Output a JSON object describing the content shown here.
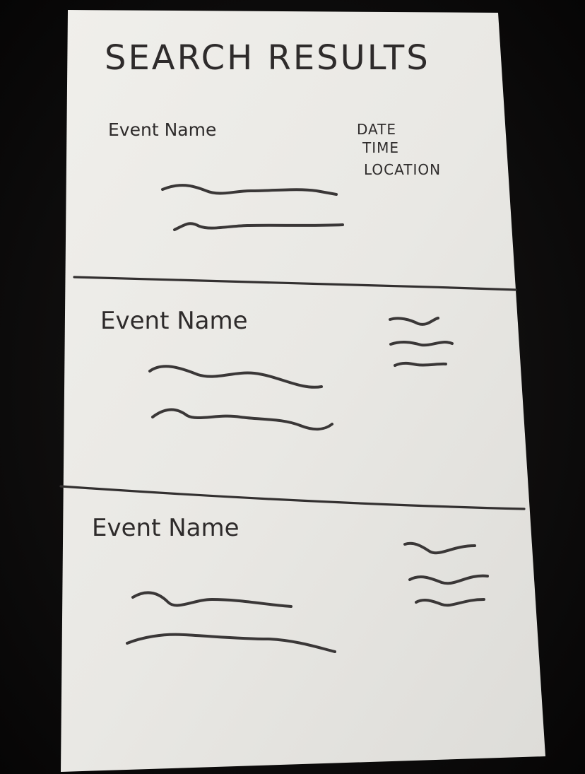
{
  "header": {
    "title": "SEARCH RESULTS"
  },
  "results": [
    {
      "event_name": "Event Name",
      "date_label": "DATE",
      "time_label": "TIME",
      "location_label": "LOCATION"
    },
    {
      "event_name": "Event Name"
    },
    {
      "event_name": "Event Name"
    }
  ],
  "colors": {
    "paper": "#ecebe7",
    "ink": "#2e2b2b",
    "background": "#0b0a0a"
  }
}
